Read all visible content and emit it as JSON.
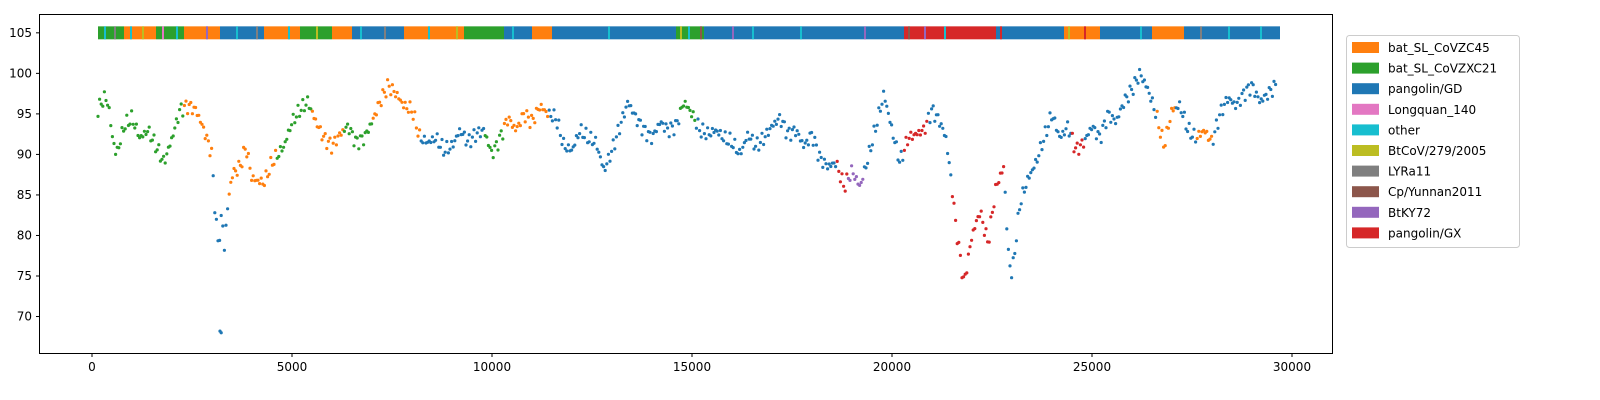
{
  "chart_data": {
    "type": "scatter",
    "title": "",
    "xlabel": "",
    "ylabel": "",
    "xlim": [
      -1300,
      31000
    ],
    "ylim": [
      65.5,
      107.2
    ],
    "xticks": [
      0,
      5000,
      10000,
      15000,
      20000,
      25000,
      30000
    ],
    "xtick_labels": [
      "0",
      "5000",
      "10000",
      "15000",
      "20000",
      "25000",
      "30000"
    ],
    "yticks": [
      70,
      75,
      80,
      85,
      90,
      95,
      100,
      105
    ],
    "ytick_labels": [
      "70",
      "75",
      "80",
      "85",
      "90",
      "95",
      "100",
      "105"
    ],
    "grid": false,
    "legend_position": "outside-right",
    "series": [
      {
        "name": "bat_SL_CoVZC45",
        "color": "#ff7f0e"
      },
      {
        "name": "bat_SL_CoVZXC21",
        "color": "#2ca02c"
      },
      {
        "name": "pangolin/GD",
        "color": "#1f77b4"
      },
      {
        "name": "Longquan_140",
        "color": "#e377c2"
      },
      {
        "name": "other",
        "color": "#17becf"
      },
      {
        "name": "BtCoV/279/2005",
        "color": "#bcbd22"
      },
      {
        "name": "LYRa11",
        "color": "#7f7f7f"
      },
      {
        "name": "Cp/Yunnan2011",
        "color": "#8c564b"
      },
      {
        "name": "BtKY72",
        "color": "#9467bd"
      },
      {
        "name": "pangolin/GX",
        "color": "#d62728"
      }
    ],
    "identity_curve": [
      [
        150,
        95.5
      ],
      [
        300,
        97.0
      ],
      [
        400,
        96.5
      ],
      [
        500,
        92.5
      ],
      [
        600,
        90.0
      ],
      [
        700,
        91.5
      ],
      [
        800,
        93.5
      ],
      [
        1000,
        94.5
      ],
      [
        1200,
        92.0
      ],
      [
        1400,
        93.0
      ],
      [
        1600,
        91.0
      ],
      [
        1800,
        89.0
      ],
      [
        2000,
        92.0
      ],
      [
        2200,
        95.5
      ],
      [
        2400,
        96.0
      ],
      [
        2600,
        95.5
      ],
      [
        2800,
        93.0
      ],
      [
        3000,
        90.0
      ],
      [
        3050,
        85.0
      ],
      [
        3150,
        79.0
      ],
      [
        3200,
        80.5
      ],
      [
        3250,
        83.0
      ],
      [
        3300,
        78.0
      ],
      [
        3400,
        84.0
      ],
      [
        3500,
        87.5
      ],
      [
        3700,
        88.5
      ],
      [
        3850,
        91.0
      ],
      [
        4000,
        87.0
      ],
      [
        4300,
        86.5
      ],
      [
        4500,
        89.0
      ],
      [
        4800,
        91.0
      ],
      [
        5000,
        94.0
      ],
      [
        5200,
        95.5
      ],
      [
        5400,
        96.5
      ],
      [
        5600,
        94.0
      ],
      [
        5800,
        92.0
      ],
      [
        6000,
        91.0
      ],
      [
        6200,
        92.5
      ],
      [
        6400,
        93.5
      ],
      [
        6600,
        91.5
      ],
      [
        6800,
        92.0
      ],
      [
        7000,
        94.0
      ],
      [
        7200,
        96.5
      ],
      [
        7400,
        98.5
      ],
      [
        7600,
        97.5
      ],
      [
        7800,
        96.0
      ],
      [
        8000,
        95.5
      ],
      [
        8200,
        92.0
      ],
      [
        8400,
        91.5
      ],
      [
        8600,
        92.0
      ],
      [
        8800,
        90.5
      ],
      [
        9000,
        91.0
      ],
      [
        9200,
        93.0
      ],
      [
        9400,
        91.5
      ],
      [
        9600,
        92.5
      ],
      [
        9800,
        93.0
      ],
      [
        10000,
        90.0
      ],
      [
        10200,
        92.0
      ],
      [
        10400,
        94.5
      ],
      [
        10600,
        93.0
      ],
      [
        10800,
        95.0
      ],
      [
        11000,
        94.0
      ],
      [
        11200,
        96.0
      ],
      [
        11400,
        95.0
      ],
      [
        11600,
        94.5
      ],
      [
        11800,
        91.0
      ],
      [
        12000,
        90.5
      ],
      [
        12200,
        93.0
      ],
      [
        12400,
        92.0
      ],
      [
        12600,
        91.5
      ],
      [
        12800,
        88.0
      ],
      [
        13000,
        90.5
      ],
      [
        13200,
        93.5
      ],
      [
        13400,
        96.5
      ],
      [
        13600,
        94.5
      ],
      [
        13800,
        93.0
      ],
      [
        14000,
        92.0
      ],
      [
        14200,
        94.0
      ],
      [
        14400,
        93.0
      ],
      [
        14600,
        93.5
      ],
      [
        14800,
        96.5
      ],
      [
        15000,
        95.0
      ],
      [
        15200,
        93.0
      ],
      [
        15400,
        92.5
      ],
      [
        15600,
        93.0
      ],
      [
        15800,
        92.0
      ],
      [
        16000,
        91.5
      ],
      [
        16200,
        90.0
      ],
      [
        16400,
        92.5
      ],
      [
        16600,
        91.0
      ],
      [
        16800,
        92.0
      ],
      [
        17000,
        93.5
      ],
      [
        17200,
        94.5
      ],
      [
        17400,
        92.5
      ],
      [
        17600,
        93.0
      ],
      [
        17800,
        91.0
      ],
      [
        18000,
        92.5
      ],
      [
        18200,
        89.5
      ],
      [
        18400,
        88.5
      ],
      [
        18600,
        89.0
      ],
      [
        18800,
        86.0
      ],
      [
        19000,
        88.0
      ],
      [
        19200,
        86.0
      ],
      [
        19400,
        89.5
      ],
      [
        19600,
        93.5
      ],
      [
        19800,
        97.5
      ],
      [
        20000,
        93.0
      ],
      [
        20200,
        89.0
      ],
      [
        20400,
        92.0
      ],
      [
        20600,
        92.5
      ],
      [
        20800,
        93.0
      ],
      [
        21000,
        95.5
      ],
      [
        21200,
        94.0
      ],
      [
        21350,
        92.0
      ],
      [
        21500,
        86.0
      ],
      [
        21600,
        81.0
      ],
      [
        21800,
        74.0
      ],
      [
        22000,
        80.0
      ],
      [
        22200,
        83.0
      ],
      [
        22400,
        79.0
      ],
      [
        22600,
        86.0
      ],
      [
        22800,
        88.5
      ],
      [
        22900,
        78.0
      ],
      [
        23000,
        75.0
      ],
      [
        23200,
        84.0
      ],
      [
        23400,
        87.0
      ],
      [
        23600,
        89.0
      ],
      [
        23800,
        92.0
      ],
      [
        24000,
        95.0
      ],
      [
        24200,
        92.0
      ],
      [
        24400,
        93.5
      ],
      [
        24600,
        90.5
      ],
      [
        24800,
        91.5
      ],
      [
        25000,
        93.5
      ],
      [
        25200,
        92.0
      ],
      [
        25400,
        95.0
      ],
      [
        25600,
        94.0
      ],
      [
        25800,
        96.5
      ],
      [
        26000,
        98.0
      ],
      [
        26200,
        100.0
      ],
      [
        26400,
        98.0
      ],
      [
        26600,
        95.0
      ],
      [
        26800,
        91.0
      ],
      [
        27000,
        95.5
      ],
      [
        27200,
        96.0
      ],
      [
        27400,
        93.0
      ],
      [
        27600,
        92.0
      ],
      [
        27800,
        93.0
      ],
      [
        28000,
        91.5
      ],
      [
        28200,
        95.0
      ],
      [
        28400,
        97.0
      ],
      [
        28600,
        96.0
      ],
      [
        28800,
        97.5
      ],
      [
        29000,
        98.5
      ],
      [
        29200,
        96.5
      ],
      [
        29400,
        97.5
      ],
      [
        29600,
        98.5
      ]
    ],
    "isolated_points": [
      [
        3200,
        68.2
      ],
      [
        3230,
        68.0
      ]
    ],
    "segment_colors": [
      [
        0,
        2300,
        "bat_SL_CoVZXC21"
      ],
      [
        2300,
        3000,
        "bat_SL_CoVZC45"
      ],
      [
        3000,
        3400,
        "pangolin/GD"
      ],
      [
        3400,
        4600,
        "bat_SL_CoVZC45"
      ],
      [
        4600,
        5500,
        "bat_SL_CoVZXC21"
      ],
      [
        5500,
        6300,
        "bat_SL_CoVZC45"
      ],
      [
        6300,
        7000,
        "bat_SL_CoVZXC21"
      ],
      [
        7000,
        8200,
        "bat_SL_CoVZC45"
      ],
      [
        8200,
        9800,
        "pangolin/GD"
      ],
      [
        9800,
        10300,
        "bat_SL_CoVZXC21"
      ],
      [
        10300,
        11400,
        "bat_SL_CoVZC45"
      ],
      [
        11400,
        14700,
        "pangolin/GD"
      ],
      [
        14700,
        15100,
        "bat_SL_CoVZXC21"
      ],
      [
        15100,
        18600,
        "pangolin/GD"
      ],
      [
        18600,
        18900,
        "pangolin/GX"
      ],
      [
        18900,
        19300,
        "BtKY72"
      ],
      [
        19300,
        20300,
        "pangolin/GD"
      ],
      [
        20300,
        20900,
        "pangolin/GX"
      ],
      [
        20900,
        21500,
        "pangolin/GD"
      ],
      [
        21500,
        22800,
        "pangolin/GX"
      ],
      [
        22800,
        24500,
        "pangolin/GD"
      ],
      [
        24500,
        24800,
        "pangolin/GX"
      ],
      [
        24800,
        26600,
        "pangolin/GD"
      ],
      [
        26600,
        27100,
        "bat_SL_CoVZC45"
      ],
      [
        27100,
        27600,
        "pangolin/GD"
      ],
      [
        27600,
        28000,
        "bat_SL_CoVZC45"
      ],
      [
        28000,
        29700,
        "pangolin/GD"
      ]
    ],
    "top_band": {
      "y": 105,
      "segments": [
        [
          150,
          800,
          "bat_SL_CoVZXC21"
        ],
        [
          800,
          1600,
          "bat_SL_CoVZC45"
        ],
        [
          1600,
          2300,
          "bat_SL_CoVZXC21"
        ],
        [
          2300,
          3200,
          "bat_SL_CoVZC45"
        ],
        [
          3200,
          4300,
          "pangolin/GD"
        ],
        [
          4300,
          5200,
          "bat_SL_CoVZC45"
        ],
        [
          5200,
          6000,
          "bat_SL_CoVZXC21"
        ],
        [
          6000,
          6500,
          "bat_SL_CoVZC45"
        ],
        [
          6500,
          7800,
          "pangolin/GD"
        ],
        [
          7800,
          8200,
          "bat_SL_CoVZC45"
        ],
        [
          8200,
          9300,
          "bat_SL_CoVZC45"
        ],
        [
          9300,
          10300,
          "bat_SL_CoVZXC21"
        ],
        [
          10300,
          11000,
          "pangolin/GD"
        ],
        [
          11000,
          11500,
          "bat_SL_CoVZC45"
        ],
        [
          11500,
          14600,
          "pangolin/GD"
        ],
        [
          14600,
          15300,
          "bat_SL_CoVZXC21"
        ],
        [
          15300,
          20300,
          "pangolin/GD"
        ],
        [
          20300,
          21500,
          "pangolin/GX"
        ],
        [
          21500,
          22600,
          "pangolin/GX"
        ],
        [
          22600,
          24300,
          "pangolin/GD"
        ],
        [
          24300,
          25200,
          "bat_SL_CoVZC45"
        ],
        [
          25200,
          26500,
          "pangolin/GD"
        ],
        [
          26500,
          27300,
          "bat_SL_CoVZC45"
        ],
        [
          27300,
          29700,
          "pangolin/GD"
        ]
      ],
      "stripes": [
        [
          300,
          "other"
        ],
        [
          550,
          "LYRa11"
        ],
        [
          950,
          "other"
        ],
        [
          1250,
          "BtCoV/279/2005"
        ],
        [
          1750,
          "Longquan_140"
        ],
        [
          2100,
          "other"
        ],
        [
          2850,
          "BtKY72"
        ],
        [
          3600,
          "other"
        ],
        [
          4100,
          "LYRa11"
        ],
        [
          4900,
          "other"
        ],
        [
          5600,
          "BtCoV/279/2005"
        ],
        [
          6700,
          "other"
        ],
        [
          7300,
          "LYRa11"
        ],
        [
          8400,
          "other"
        ],
        [
          9100,
          "BtCoV/279/2005"
        ],
        [
          10500,
          "other"
        ],
        [
          12900,
          "other"
        ],
        [
          14700,
          "BtCoV/279/2005"
        ],
        [
          14900,
          "other"
        ],
        [
          15200,
          "Cp/Yunnan2011"
        ],
        [
          16000,
          "BtKY72"
        ],
        [
          16500,
          "other"
        ],
        [
          17700,
          "other"
        ],
        [
          19300,
          "BtKY72"
        ],
        [
          20400,
          "Cp/Yunnan2011"
        ],
        [
          20800,
          "BtKY72"
        ],
        [
          21300,
          "other"
        ],
        [
          22700,
          "pangolin/GX"
        ],
        [
          24400,
          "BtCoV/279/2005"
        ],
        [
          24800,
          "pangolin/GX"
        ],
        [
          26200,
          "other"
        ],
        [
          27700,
          "LYRa11"
        ],
        [
          28400,
          "other"
        ],
        [
          29200,
          "other"
        ]
      ]
    }
  }
}
